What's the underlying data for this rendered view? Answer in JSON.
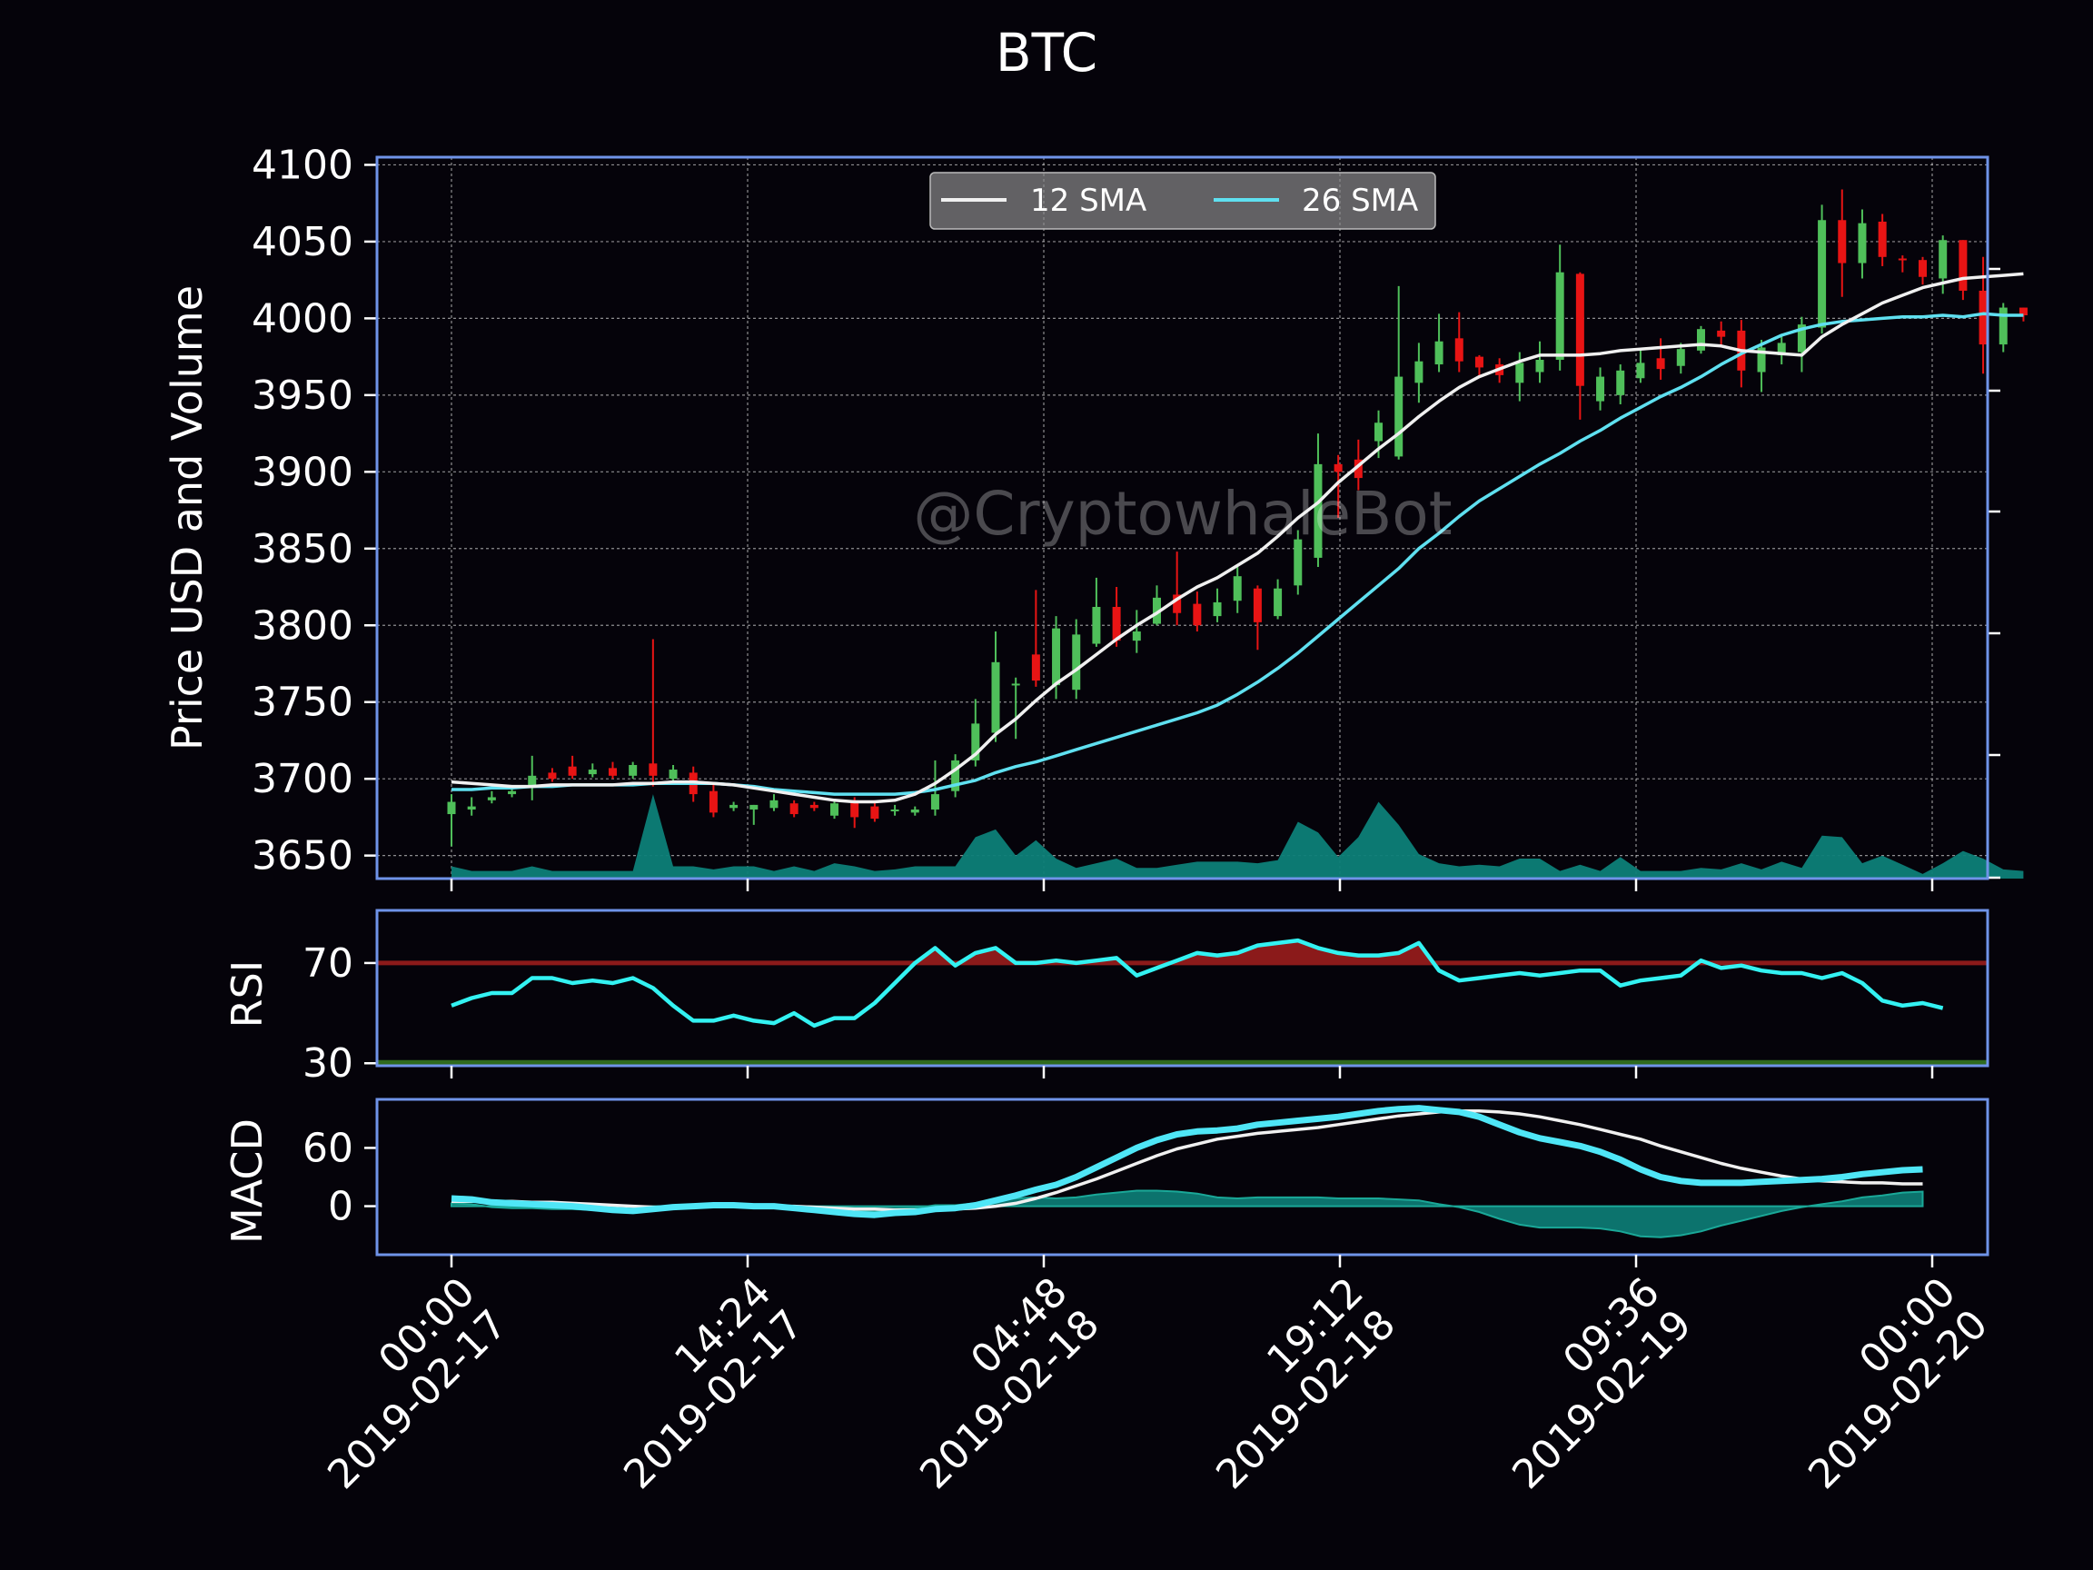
{
  "title": "BTC",
  "watermark": "@CryptowhaleBot",
  "colors": {
    "background": "#05030a",
    "frame": "#6f93e8",
    "up": "#4fbf5a",
    "down": "#e81414",
    "sma12": "#f0f0f0",
    "sma26": "#5fe0f0",
    "volume": "#0d8078",
    "rsi": "#33f2f2",
    "rsi_overbought": "#8b1a1a",
    "rsi_oversold": "#2f6a1e",
    "macd": "#4fe6f6",
    "signal": "#f0f0f0",
    "histogram": "#0d8078"
  },
  "chart_data": [
    {
      "type": "candlestick",
      "ylabel": "Price USD and Volume",
      "ylim": [
        3635,
        4105
      ],
      "yticks": [
        3650,
        3700,
        3750,
        3800,
        3850,
        3900,
        3950,
        4000,
        4050,
        4100
      ],
      "xlim": [
        -2.5,
        5.0
      ],
      "grid": true,
      "legend": {
        "position": "top-center",
        "entries": [
          "12 SMA",
          "26 SMA"
        ]
      },
      "time_step_hours": 0.8,
      "candles": [
        [
          3677,
          3685,
          3656,
          3690
        ],
        [
          3680,
          3682,
          3676,
          3688
        ],
        [
          3686,
          3688,
          3684,
          3692
        ],
        [
          3690,
          3692,
          3688,
          3694
        ],
        [
          3695,
          3702,
          3686,
          3715
        ],
        [
          3704,
          3700,
          3698,
          3707
        ],
        [
          3708,
          3702,
          3700,
          3715
        ],
        [
          3703,
          3706,
          3701,
          3710
        ],
        [
          3707,
          3702,
          3700,
          3711
        ],
        [
          3702,
          3709,
          3700,
          3711
        ],
        [
          3710,
          3702,
          3695,
          3791
        ],
        [
          3700,
          3706,
          3698,
          3709
        ],
        [
          3704,
          3690,
          3685,
          3708
        ],
        [
          3692,
          3678,
          3675,
          3696
        ],
        [
          3681,
          3683,
          3679,
          3685
        ],
        [
          3680,
          3683,
          3670,
          3683
        ],
        [
          3681,
          3686,
          3679,
          3690
        ],
        [
          3684,
          3677,
          3675,
          3686
        ],
        [
          3683,
          3681,
          3679,
          3685
        ],
        [
          3676,
          3684,
          3674,
          3686
        ],
        [
          3686,
          3675,
          3668,
          3688
        ],
        [
          3682,
          3674,
          3672,
          3686
        ],
        [
          3679,
          3680,
          3676,
          3683
        ],
        [
          3678,
          3680,
          3676,
          3682
        ],
        [
          3680,
          3690,
          3676,
          3712
        ],
        [
          3692,
          3712,
          3688,
          3716
        ],
        [
          3712,
          3736,
          3708,
          3752
        ],
        [
          3730,
          3776,
          3724,
          3796
        ],
        [
          3762,
          3762,
          3726,
          3766
        ],
        [
          3781,
          3764,
          3760,
          3823
        ],
        [
          3761,
          3798,
          3752,
          3806
        ],
        [
          3758,
          3794,
          3752,
          3804
        ],
        [
          3788,
          3812,
          3786,
          3831
        ],
        [
          3812,
          3790,
          3786,
          3825
        ],
        [
          3790,
          3796,
          3782,
          3810
        ],
        [
          3801,
          3818,
          3800,
          3826
        ],
        [
          3820,
          3808,
          3800,
          3848
        ],
        [
          3814,
          3800,
          3796,
          3822
        ],
        [
          3806,
          3815,
          3802,
          3824
        ],
        [
          3816,
          3832,
          3808,
          3838
        ],
        [
          3824,
          3802,
          3784,
          3826
        ],
        [
          3806,
          3824,
          3804,
          3830
        ],
        [
          3826,
          3856,
          3820,
          3862
        ],
        [
          3844,
          3905,
          3838,
          3925
        ],
        [
          3905,
          3900,
          3870,
          3911
        ],
        [
          3908,
          3896,
          3888,
          3921
        ],
        [
          3920,
          3932,
          3909,
          3940
        ],
        [
          3910,
          3962,
          3908,
          4021
        ],
        [
          3958,
          3972,
          3945,
          3984
        ],
        [
          3970,
          3985,
          3965,
          4003
        ],
        [
          3987,
          3972,
          3965,
          4004
        ],
        [
          3975,
          3968,
          3962,
          3976
        ],
        [
          3970,
          3963,
          3958,
          3974
        ],
        [
          3958,
          3971,
          3946,
          3978
        ],
        [
          3965,
          3973,
          3958,
          3985
        ],
        [
          3973,
          4030,
          3966,
          4048
        ],
        [
          4029,
          3956,
          3934,
          4030
        ],
        [
          3946,
          3962,
          3940,
          3968
        ],
        [
          3950,
          3966,
          3944,
          3970
        ],
        [
          3961,
          3971,
          3958,
          3980
        ],
        [
          3974,
          3967,
          3960,
          3987
        ],
        [
          3969,
          3980,
          3964,
          3984
        ],
        [
          3979,
          3993,
          3977,
          3995
        ],
        [
          3992,
          3988,
          3982,
          3998
        ],
        [
          3992,
          3966,
          3955,
          3999
        ],
        [
          3965,
          3981,
          3952,
          3986
        ],
        [
          3976,
          3984,
          3970,
          3989
        ],
        [
          3978,
          3996,
          3965,
          4001
        ],
        [
          3994,
          4064,
          3990,
          4074
        ],
        [
          4064,
          4036,
          4014,
          4084
        ],
        [
          4036,
          4062,
          4026,
          4071
        ],
        [
          4063,
          4040,
          4034,
          4068
        ],
        [
          4039,
          4038,
          4030,
          4041
        ],
        [
          4038,
          4027,
          4022,
          4040
        ],
        [
          4026,
          4051,
          4016,
          4054
        ],
        [
          4051,
          4018,
          4012,
          4051
        ],
        [
          4018,
          3983,
          3964,
          4040
        ],
        [
          3983,
          4007,
          3978,
          4010
        ],
        [
          4007,
          4002,
          3998,
          4007
        ]
      ],
      "volume": [
        3643,
        3640,
        3640,
        3640,
        3643,
        3640,
        3640,
        3640,
        3640,
        3640,
        3690,
        3643,
        3643,
        3641,
        3643,
        3643,
        3640,
        3643,
        3640,
        3645,
        3643,
        3640,
        3641,
        3643,
        3643,
        3643,
        3662,
        3667,
        3650,
        3660,
        3648,
        3642,
        3645,
        3648,
        3642,
        3642,
        3644,
        3646,
        3646,
        3646,
        3645,
        3647,
        3672,
        3665,
        3649,
        3662,
        3685,
        3670,
        3651,
        3645,
        3643,
        3644,
        3643,
        3648,
        3648,
        3640,
        3644,
        3640,
        3649,
        3640,
        3640,
        3640,
        3642,
        3641,
        3645,
        3641,
        3646,
        3642,
        3663,
        3662,
        3645,
        3650,
        3644,
        3638,
        3645,
        3653,
        3648,
        3641,
        3640
      ],
      "sma12": [
        3698,
        3697,
        3696,
        3695,
        3695,
        3696,
        3696,
        3696,
        3696,
        3697,
        3697,
        3698,
        3698,
        3697,
        3696,
        3694,
        3692,
        3690,
        3688,
        3686,
        3685,
        3685,
        3686,
        3690,
        3697,
        3706,
        3716,
        3729,
        3739,
        3751,
        3762,
        3771,
        3781,
        3791,
        3800,
        3808,
        3817,
        3825,
        3831,
        3839,
        3847,
        3858,
        3870,
        3880,
        3893,
        3904,
        3915,
        3925,
        3936,
        3946,
        3955,
        3962,
        3967,
        3972,
        3976,
        3976,
        3976,
        3977,
        3979,
        3980,
        3981,
        3982,
        3983,
        3982,
        3979,
        3978,
        3977,
        3976,
        3988,
        3996,
        4003,
        4010,
        4015,
        4020,
        4023,
        4026,
        4027,
        4028,
        4029
      ],
      "sma26": [
        3693,
        3693,
        3694,
        3694,
        3695,
        3695,
        3696,
        3696,
        3696,
        3696,
        3697,
        3697,
        3697,
        3697,
        3696,
        3695,
        3693,
        3692,
        3691,
        3690,
        3690,
        3690,
        3690,
        3691,
        3693,
        3696,
        3699,
        3704,
        3708,
        3711,
        3715,
        3719,
        3723,
        3727,
        3731,
        3735,
        3739,
        3743,
        3748,
        3755,
        3763,
        3772,
        3782,
        3793,
        3804,
        3815,
        3826,
        3837,
        3850,
        3860,
        3871,
        3881,
        3889,
        3897,
        3905,
        3912,
        3920,
        3927,
        3935,
        3942,
        3949,
        3955,
        3962,
        3970,
        3977,
        3983,
        3989,
        3993,
        3996,
        3998,
        3999,
        4000,
        4001,
        4001,
        4002,
        4001,
        4003,
        4002,
        4002
      ]
    },
    {
      "type": "line",
      "ylabel": "RSI",
      "ylim": [
        29,
        91
      ],
      "yticks": [
        30,
        70
      ],
      "overbought": 70,
      "oversold": 30,
      "values": [
        53,
        56,
        58,
        58,
        64,
        64,
        62,
        63,
        62,
        64,
        60,
        53,
        47,
        47,
        49,
        47,
        46,
        50,
        45,
        48,
        48,
        54,
        62,
        70,
        76,
        69,
        74,
        76,
        70,
        70,
        71,
        70,
        71,
        72,
        65,
        68,
        71,
        74,
        73,
        74,
        77,
        78,
        79,
        76,
        74,
        73,
        73,
        74,
        78,
        67,
        63,
        64,
        65,
        66,
        65,
        66,
        67,
        67,
        61,
        63,
        64,
        65,
        71,
        68,
        69,
        67,
        66,
        66,
        64,
        66,
        62,
        55,
        53,
        54,
        52
      ]
    },
    {
      "type": "line",
      "ylabel": "MACD",
      "ylim": [
        -50,
        110
      ],
      "yticks": [
        0,
        60
      ],
      "macd": [
        8,
        7,
        4,
        3,
        2,
        1,
        0,
        -2,
        -4,
        -5,
        -3,
        -1,
        0,
        1,
        1,
        0,
        0,
        -2,
        -4,
        -6,
        -8,
        -9,
        -7,
        -6,
        -3,
        -2,
        1,
        6,
        11,
        17,
        22,
        30,
        40,
        50,
        60,
        68,
        74,
        77,
        78,
        80,
        84,
        86,
        88,
        90,
        92,
        95,
        98,
        100,
        101,
        99,
        97,
        92,
        84,
        76,
        70,
        66,
        62,
        56,
        48,
        38,
        30,
        26,
        24,
        24,
        24,
        25,
        26,
        27,
        28,
        30,
        33,
        35,
        37,
        38
      ],
      "signal": [
        5,
        5,
        5,
        5,
        4,
        4,
        3,
        2,
        1,
        0,
        -1,
        -1,
        -1,
        0,
        0,
        0,
        0,
        0,
        -1,
        -2,
        -3,
        -3,
        -4,
        -4,
        -4,
        -3,
        -2,
        0,
        3,
        8,
        14,
        21,
        28,
        36,
        44,
        52,
        59,
        64,
        69,
        72,
        75,
        77,
        79,
        81,
        84,
        87,
        90,
        93,
        95,
        97,
        98,
        98,
        97,
        95,
        92,
        88,
        84,
        79,
        74,
        69,
        62,
        56,
        50,
        44,
        39,
        35,
        31,
        28,
        26,
        25,
        24,
        24,
        23,
        23
      ],
      "histogram": [
        3,
        2,
        -1,
        -2,
        -2,
        -3,
        -3,
        -4,
        -5,
        -5,
        -2,
        0,
        1,
        1,
        1,
        0,
        0,
        -2,
        -3,
        -4,
        -5,
        -6,
        -3,
        -2,
        1,
        1,
        3,
        6,
        8,
        9,
        8,
        9,
        12,
        14,
        16,
        16,
        15,
        13,
        9,
        8,
        9,
        9,
        9,
        9,
        8,
        8,
        8,
        7,
        6,
        2,
        -1,
        -6,
        -13,
        -19,
        -22,
        -22,
        -22,
        -23,
        -26,
        -31,
        -32,
        -30,
        -26,
        -20,
        -15,
        -10,
        -5,
        -1,
        2,
        5,
        9,
        11,
        14,
        15
      ]
    }
  ],
  "xaxis": {
    "tick_labels": [
      [
        "00:00",
        "2019-02-17"
      ],
      [
        "14:24",
        "2019-02-17"
      ],
      [
        "04:48",
        "2019-02-18"
      ],
      [
        "19:12",
        "2019-02-18"
      ],
      [
        "09:36",
        "2019-02-19"
      ],
      [
        "00:00",
        "2019-02-20"
      ]
    ]
  }
}
